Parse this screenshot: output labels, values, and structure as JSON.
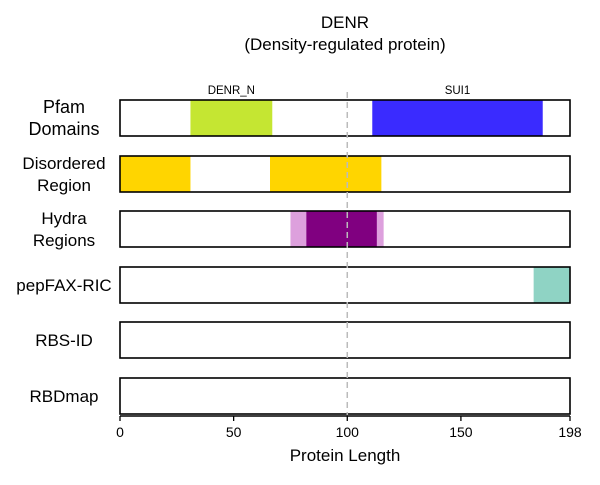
{
  "chart_data": {
    "type": "bar",
    "title": "DENR",
    "subtitle": "(Density-regulated protein)",
    "xlabel": "Protein Length",
    "xlim": [
      0,
      198
    ],
    "xticks": [
      0,
      50,
      100,
      150,
      198
    ],
    "reference_line_x": 100,
    "tracks": [
      {
        "label_lines": [
          "Pfam",
          "Domains"
        ],
        "segments": [
          {
            "name": "DENR_N",
            "start": 31,
            "end": 67,
            "color": "#c5e632"
          },
          {
            "name": "SUI1",
            "start": 111,
            "end": 186,
            "color": "#3a2bff"
          }
        ]
      },
      {
        "label_lines": [
          "Disordered",
          "Region"
        ],
        "segments": [
          {
            "start": 0,
            "end": 31,
            "color": "#ffd500"
          },
          {
            "start": 66,
            "end": 115,
            "color": "#ffd500"
          }
        ]
      },
      {
        "label_lines": [
          "Hydra",
          "Regions"
        ],
        "segments": [
          {
            "start": 75,
            "end": 116,
            "color": "#dda0dd"
          },
          {
            "start": 82,
            "end": 113,
            "color": "#800080"
          }
        ]
      },
      {
        "label_lines": [
          "pepFAX-RIC"
        ],
        "segments": [
          {
            "start": 182,
            "end": 198,
            "color": "#8fd3c4"
          }
        ]
      },
      {
        "label_lines": [
          "RBS-ID"
        ],
        "segments": []
      },
      {
        "label_lines": [
          "RBDmap"
        ],
        "segments": []
      }
    ]
  }
}
